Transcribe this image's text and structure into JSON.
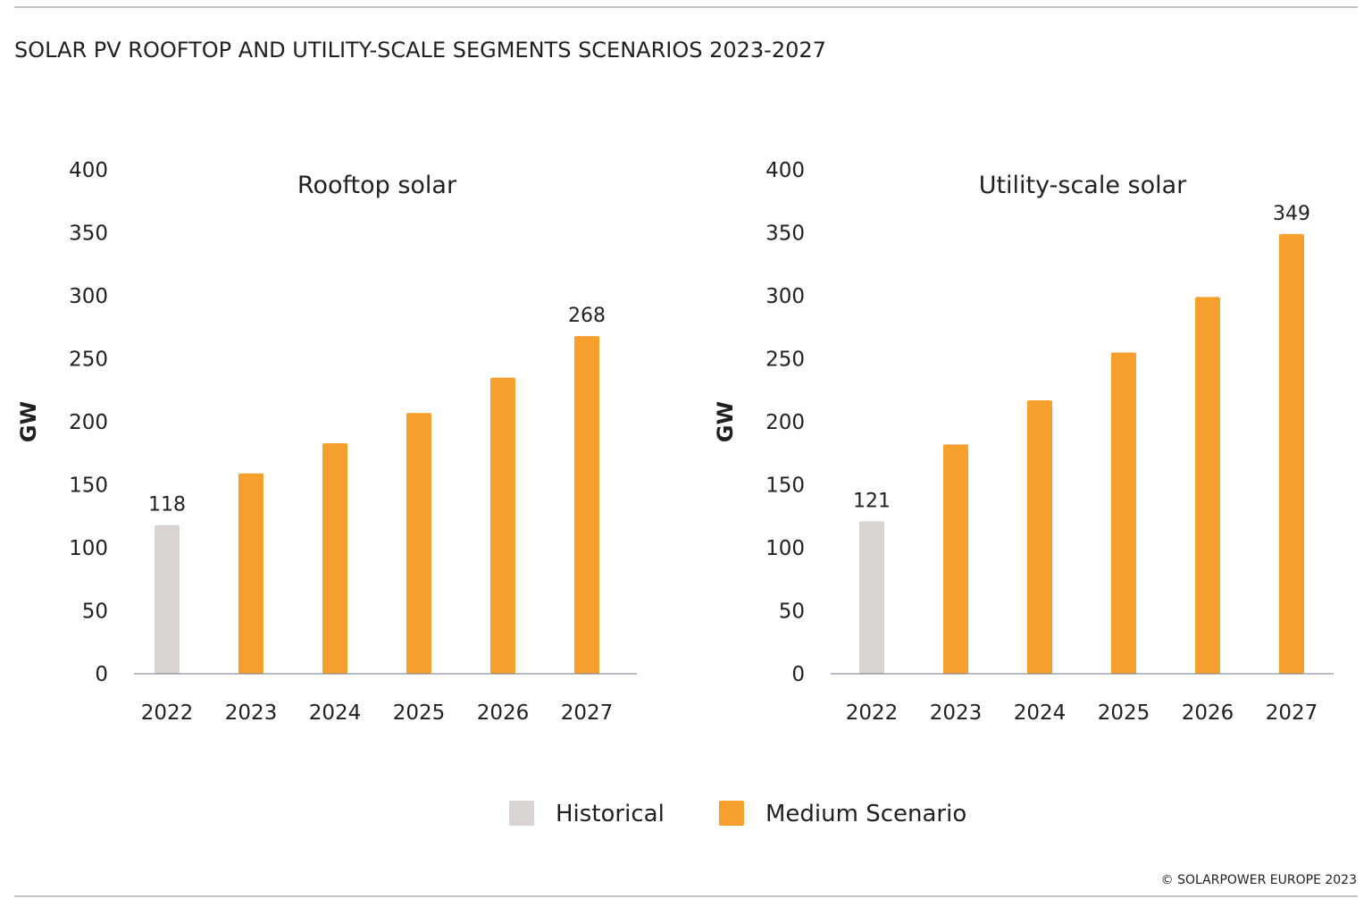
{
  "title": "SOLAR PV ROOFTOP AND UTILITY-SCALE SEGMENTS SCENARIOS 2023-2027",
  "copyright": "© SOLARPOWER EUROPE 2023",
  "legend": [
    {
      "label": "Historical",
      "color": "#D9D3D1"
    },
    {
      "label": "Medium Scenario",
      "color": "#F79F2C"
    }
  ],
  "chart_data": [
    {
      "type": "bar",
      "title": "Rooftop solar",
      "ylabel": "GW",
      "ylim": [
        0,
        400
      ],
      "yticks": [
        0,
        50,
        100,
        150,
        200,
        250,
        300,
        350,
        400
      ],
      "categories": [
        "2022",
        "2023",
        "2024",
        "2025",
        "2026",
        "2027"
      ],
      "values": [
        118,
        159,
        183,
        207,
        235,
        268
      ],
      "series_by_bar": [
        "Historical",
        "Medium Scenario",
        "Medium Scenario",
        "Medium Scenario",
        "Medium Scenario",
        "Medium Scenario"
      ],
      "data_labels": {
        "2022": "118",
        "2027": "268"
      },
      "grid": false
    },
    {
      "type": "bar",
      "title": "Utility-scale solar",
      "ylabel": "GW",
      "ylim": [
        0,
        400
      ],
      "yticks": [
        0,
        50,
        100,
        150,
        200,
        250,
        300,
        350,
        400
      ],
      "categories": [
        "2022",
        "2023",
        "2024",
        "2025",
        "2026",
        "2027"
      ],
      "values": [
        121,
        182,
        217,
        255,
        299,
        349
      ],
      "series_by_bar": [
        "Historical",
        "Medium Scenario",
        "Medium Scenario",
        "Medium Scenario",
        "Medium Scenario",
        "Medium Scenario"
      ],
      "data_labels": {
        "2022": "121",
        "2027": "349"
      },
      "grid": false
    }
  ]
}
